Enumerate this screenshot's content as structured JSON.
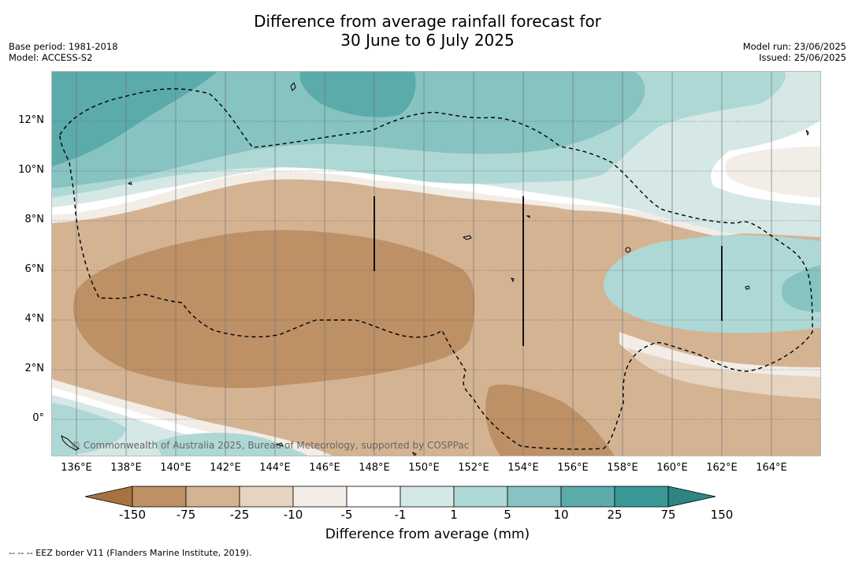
{
  "title_line1": "Difference from average rainfall forecast for",
  "title_line2": "30 June to 6 July 2025",
  "meta_left": {
    "base_period": "Base period: 1981-2018",
    "model": "Model: ACCESS-S2"
  },
  "meta_right": {
    "model_run": "Model run: 23/06/2025",
    "issued": "Issued: 25/06/2025"
  },
  "lat_labels": [
    "12°N",
    "10°N",
    "8°N",
    "6°N",
    "4°N",
    "2°N",
    "0°"
  ],
  "lon_labels": [
    "136°E",
    "138°E",
    "140°E",
    "142°E",
    "144°E",
    "146°E",
    "148°E",
    "150°E",
    "152°E",
    "154°E",
    "156°E",
    "158°E",
    "160°E",
    "162°E",
    "164°E"
  ],
  "credit": "© Commonwealth of Australia 2025, Bureau of Meteorology, supported by COSPPac",
  "colorbar": {
    "ticks": [
      "-150",
      "-75",
      "-25",
      "-10",
      "-5",
      "-1",
      "1",
      "5",
      "10",
      "25",
      "75",
      "150"
    ],
    "colors": [
      "#a67340",
      "#bd9066",
      "#d4b393",
      "#e6d3c0",
      "#f2ede7",
      "#ffffff",
      "#d5e8e6",
      "#aed8d6",
      "#86c3c1",
      "#5aabaa",
      "#3a9996",
      "#2e8582"
    ],
    "label": "Difference from average (mm)"
  },
  "footnote": "--  --  -- EEZ border V11 (Flanders Marine Institute, 2019)."
}
